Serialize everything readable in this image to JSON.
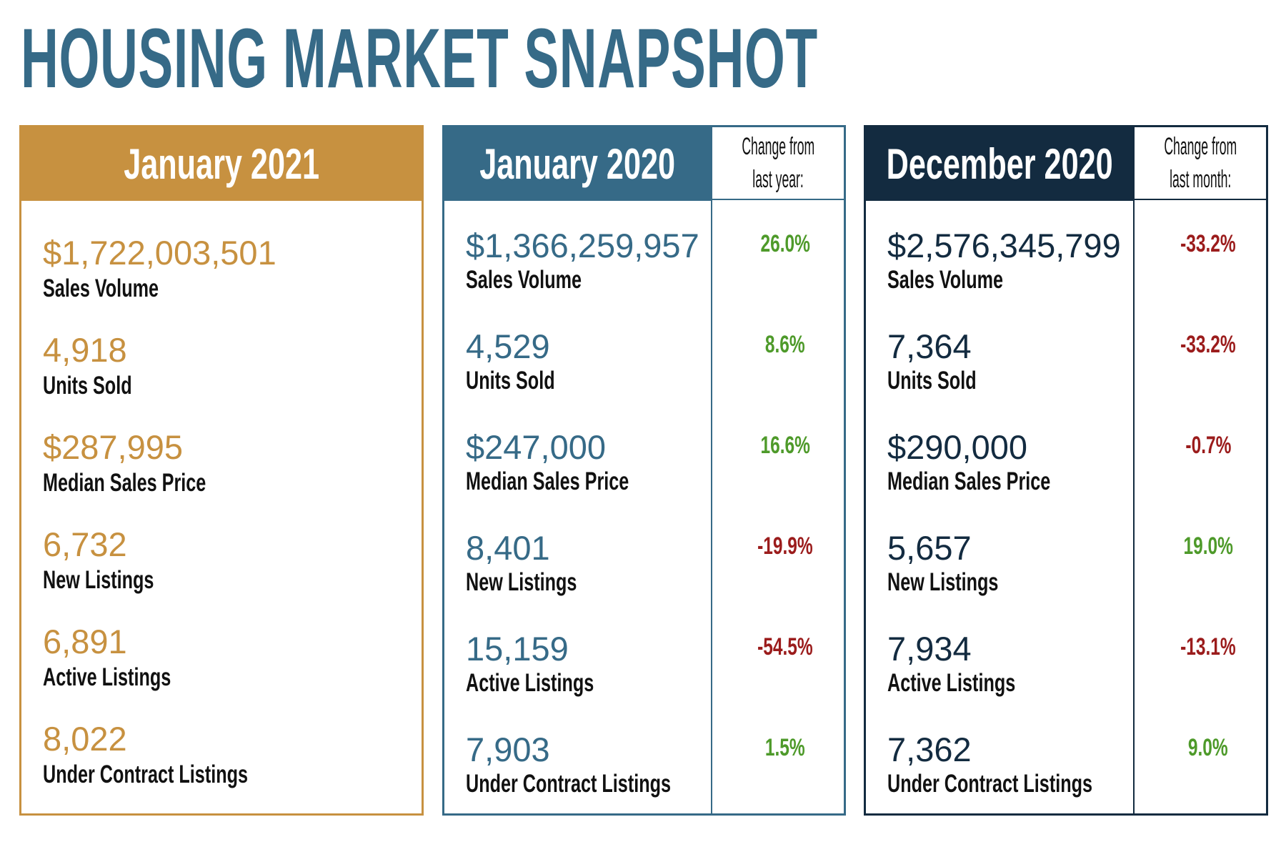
{
  "title": "HOUSING MARKET SNAPSHOT",
  "colors": {
    "gold": "#C79140",
    "teal": "#366A87",
    "navy": "#132B40",
    "positive": "#4E9A2A",
    "negative": "#9B1C1C"
  },
  "panels": [
    {
      "heading": "January 2021",
      "rows": [
        {
          "value": "$1,722,003,501",
          "label": "Sales Volume"
        },
        {
          "value": "4,918",
          "label": "Units Sold"
        },
        {
          "value": "$287,995",
          "label": "Median Sales Price"
        },
        {
          "value": "6,732",
          "label": "New Listings"
        },
        {
          "value": "6,891",
          "label": "Active Listings"
        },
        {
          "value": "8,022",
          "label": "Under Contract Listings"
        }
      ]
    },
    {
      "heading": "January 2020",
      "change_heading": [
        "Change from",
        "last year:"
      ],
      "rows": [
        {
          "value": "$1,366,259,957",
          "label": "Sales Volume",
          "change": "26.0%"
        },
        {
          "value": "4,529",
          "label": "Units Sold",
          "change": "8.6%"
        },
        {
          "value": "$247,000",
          "label": "Median Sales Price",
          "change": "16.6%"
        },
        {
          "value": "8,401",
          "label": "New Listings",
          "change": "-19.9%"
        },
        {
          "value": "15,159",
          "label": "Active Listings",
          "change": "-54.5%"
        },
        {
          "value": "7,903",
          "label": "Under Contract Listings",
          "change": "1.5%"
        }
      ]
    },
    {
      "heading": "December 2020",
      "change_heading": [
        "Change from",
        "last month:"
      ],
      "rows": [
        {
          "value": "$2,576,345,799",
          "label": "Sales Volume",
          "change": "-33.2%"
        },
        {
          "value": "7,364",
          "label": "Units Sold",
          "change": "-33.2%"
        },
        {
          "value": "$290,000",
          "label": "Median Sales Price",
          "change": "-0.7%"
        },
        {
          "value": "5,657",
          "label": "New Listings",
          "change": "19.0%"
        },
        {
          "value": "7,934",
          "label": "Active Listings",
          "change": "-13.1%"
        },
        {
          "value": "7,362",
          "label": "Under Contract Listings",
          "change": "9.0%"
        }
      ]
    }
  ]
}
